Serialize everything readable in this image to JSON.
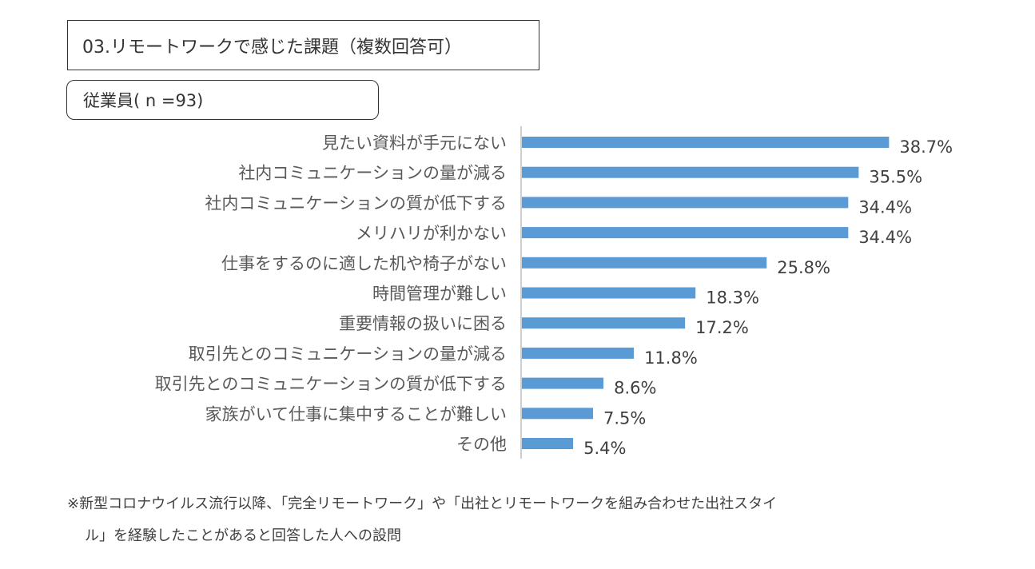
{
  "header": {
    "title": "03.リモートワークで感じた課題（複数回答可）",
    "group": "従業員( n =93)"
  },
  "chart_data": {
    "type": "bar",
    "orientation": "horizontal",
    "categories": [
      "見たい資料が手元にない",
      "社内コミュニケーションの量が減る",
      "社内コミュニケーションの質が低下する",
      "メリハリが利かない",
      "仕事をするのに適した机や椅子がない",
      "時間管理が難しい",
      "重要情報の扱いに困る",
      "取引先とのコミュニケーションの量が減る",
      "取引先とのコミュニケーションの質が低下する",
      "家族がいて仕事に集中することが難しい",
      "その他"
    ],
    "values": [
      38.7,
      35.5,
      34.4,
      34.4,
      25.8,
      18.3,
      17.2,
      11.8,
      8.6,
      7.5,
      5.4
    ],
    "value_labels": [
      "38.7%",
      "35.5%",
      "34.4%",
      "34.4%",
      "25.8%",
      "18.3%",
      "17.2%",
      "11.8%",
      "8.6%",
      "7.5%",
      "5.4%"
    ],
    "unit": "%",
    "xlim": [
      0,
      50
    ],
    "bar_color": "#5B9BD5",
    "axis_color": "#BFBFBF"
  },
  "footnote": {
    "line1": "※新型コロナウイルス流行以降、「完全リモートワーク」や「出社とリモートワークを組み合わせた出社スタイ",
    "line2": "ル」を経験したことがあると回答した人への設問"
  }
}
